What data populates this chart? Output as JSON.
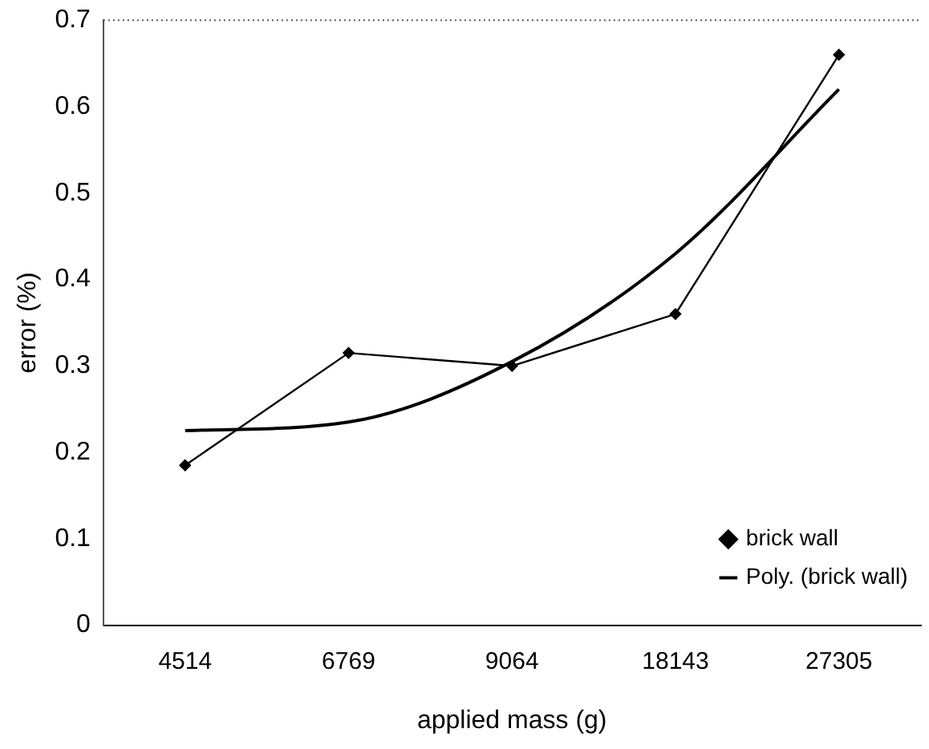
{
  "chart_data": {
    "type": "line",
    "xlabel": "applied mass (g)",
    "ylabel": "error (%)",
    "categories": [
      "4514",
      "6769",
      "9064",
      "18143",
      "27305"
    ],
    "series": [
      {
        "name": "brick wall",
        "color": "#000000",
        "values": [
          0.185,
          0.315,
          0.3,
          0.36,
          0.66
        ],
        "marker": "diamond"
      },
      {
        "name": "Poly. (brick wall)",
        "color": "#000000",
        "values": [
          0.225,
          0.235,
          0.305,
          0.43,
          0.62
        ],
        "marker": "none"
      }
    ],
    "ylim": [
      0,
      0.7
    ],
    "yticks": [
      0,
      0.1,
      0.2,
      0.3,
      0.4,
      0.5,
      0.6,
      0.7
    ],
    "grid": false,
    "legend": "bottom right"
  }
}
